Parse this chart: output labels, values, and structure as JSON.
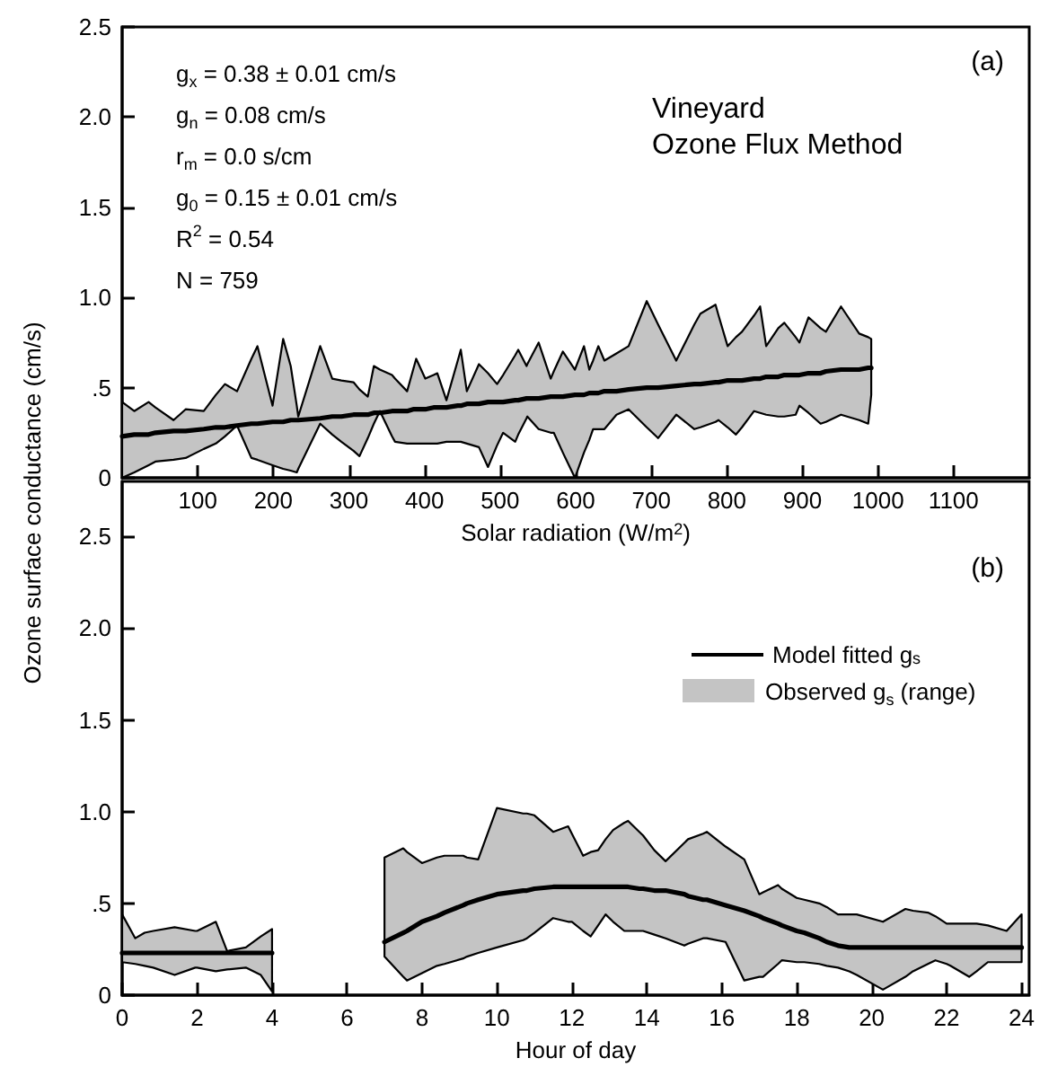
{
  "chart_data": [
    {
      "type": "line",
      "title": "Vineyard",
      "subtitle": "Ozone Flux Method",
      "xlabel": "Solar radiation (W/m$^{2}$)",
      "ylabel": "Ozone surface conductance (cm/s)",
      "annotations": [
        "g$_{x}$ = 0.38 ± 0.01 cm/s",
        "g$_{n}$ = 0.08 cm/s",
        "r$_{m}$ = 0.0 s/cm",
        "g$_{0}$ = 0.15 ± 0.01 cm/s",
        "R$^{2}$ = 0.54",
        "N = 759",
        "(a)"
      ],
      "series": [
        {
          "color": "#000000",
          "x": [
            0,
            16,
            35,
            44,
            68,
            84,
            108,
            124,
            136,
            152,
            171,
            179,
            199,
            213,
            223,
            231,
            233,
            262,
            278,
            290,
            306,
            314,
            325,
            333,
            341,
            357,
            361,
            377,
            385,
            389,
            401,
            412,
            417,
            429,
            444,
            448,
            456,
            472,
            484,
            496,
            504,
            520,
            524,
            535,
            536,
            551,
            567,
            571,
            583,
            599,
            611,
            618,
            623,
            630,
            638,
            654,
            670,
            694,
            709,
            733,
            757,
            765,
            785,
            789,
            801,
            812,
            820,
            836,
            844,
            852,
            868,
            876,
            891,
            896,
            908,
            924,
            931,
            951,
            975,
            987,
            991
          ],
          "values": [
            0.23,
            0.24,
            0.24,
            0.25,
            0.26,
            0.26,
            0.27,
            0.28,
            0.28,
            0.29,
            0.3,
            0.3,
            0.31,
            0.31,
            0.32,
            0.32,
            0.32,
            0.33,
            0.34,
            0.34,
            0.35,
            0.35,
            0.35,
            0.36,
            0.36,
            0.37,
            0.37,
            0.37,
            0.38,
            0.38,
            0.38,
            0.39,
            0.39,
            0.39,
            0.4,
            0.4,
            0.41,
            0.41,
            0.42,
            0.42,
            0.42,
            0.43,
            0.43,
            0.44,
            0.44,
            0.44,
            0.45,
            0.45,
            0.45,
            0.46,
            0.46,
            0.47,
            0.47,
            0.47,
            0.48,
            0.48,
            0.49,
            0.5,
            0.5,
            0.51,
            0.52,
            0.52,
            0.53,
            0.53,
            0.54,
            0.54,
            0.54,
            0.55,
            0.55,
            0.56,
            0.56,
            0.57,
            0.57,
            0.57,
            0.58,
            0.58,
            0.59,
            0.6,
            0.6,
            0.61,
            0.61
          ],
          "upper": [
            0.42,
            0.37,
            0.42,
            0.39,
            0.32,
            0.38,
            0.37,
            0.46,
            0.52,
            0.48,
            0.66,
            0.73,
            0.4,
            0.77,
            0.62,
            0.4,
            0.34,
            0.73,
            0.55,
            0.54,
            0.53,
            0.49,
            0.45,
            0.62,
            0.6,
            0.57,
            0.55,
            0.48,
            0.6,
            0.66,
            0.55,
            0.57,
            0.58,
            0.43,
            0.65,
            0.71,
            0.48,
            0.63,
            0.58,
            0.52,
            0.57,
            0.68,
            0.71,
            0.62,
            0.63,
            0.75,
            0.55,
            0.59,
            0.7,
            0.6,
            0.73,
            0.6,
            0.65,
            0.73,
            0.65,
            0.69,
            0.73,
            0.98,
            0.85,
            0.65,
            0.85,
            0.91,
            0.96,
            0.9,
            0.73,
            0.78,
            0.81,
            0.9,
            0.95,
            0.73,
            0.83,
            0.86,
            0.78,
            0.75,
            0.89,
            0.83,
            0.81,
            0.95,
            0.8,
            0.78,
            0.77
          ],
          "lower": [
            0,
            0.03,
            0.07,
            0.09,
            0.1,
            0.11,
            0.16,
            0.19,
            0.23,
            0.29,
            0.11,
            0.1,
            0.07,
            0.05,
            0.04,
            0.03,
            0.05,
            0.3,
            0.24,
            0.2,
            0.15,
            0.12,
            0.22,
            0.3,
            0.37,
            0.23,
            0.2,
            0.19,
            0.19,
            0.19,
            0.19,
            0.19,
            0.19,
            0.2,
            0.2,
            0.2,
            0.19,
            0.17,
            0.06,
            0.18,
            0.25,
            0.2,
            0.24,
            0.33,
            0.34,
            0.27,
            0.25,
            0.25,
            0.14,
            0,
            0.14,
            0.21,
            0.27,
            0.27,
            0.27,
            0.35,
            0.38,
            0.28,
            0.22,
            0.35,
            0.27,
            0.28,
            0.31,
            0.32,
            0.28,
            0.24,
            0.28,
            0.37,
            0.36,
            0.35,
            0.34,
            0.34,
            0.35,
            0.4,
            0.36,
            0.3,
            0.31,
            0.35,
            0.32,
            0.3,
            0.46
          ]
        }
      ],
      "xlim": [
        0,
        1200
      ],
      "xticks": [
        100,
        200,
        300,
        400,
        500,
        600,
        700,
        800,
        900,
        1000,
        1100
      ],
      "ylim": [
        0,
        2.5
      ],
      "yticks": [
        0,
        {
          "value": 0.5,
          "label": ".5"
        },
        {
          "value": 1,
          "label": "1.0"
        },
        1.5,
        {
          "value": 2,
          "label": "2.0"
        },
        2.5
      ]
    },
    {
      "type": "line",
      "xlabel": "Hour of day",
      "annotations": [
        "(b)",
        "Observed g$_{s}$ (range)"
      ],
      "legend": "top right",
      "series": [
        {
          "name": "Model fitted g$_{s}$",
          "color": "#000000",
          "x": [
            0,
            0.35,
            0.6,
            0.83,
            1.4,
            1.95,
            2,
            2.5,
            2.8,
            3.3,
            3.7,
            4,
            5.5,
            7,
            7.5,
            7.6,
            8,
            8.4,
            8.6,
            9.1,
            9.2,
            9.5,
            10,
            10.7,
            10.8,
            11,
            11.5,
            11.9,
            12,
            12.3,
            12.5,
            12.7,
            12.9,
            13.1,
            13.4,
            13.5,
            13.8,
            13.9,
            14.2,
            14.5,
            15,
            15.1,
            15.5,
            15.6,
            16.1,
            16.6,
            17,
            17.1,
            17.5,
            17.6,
            18,
            18.2,
            18.6,
            18.8,
            19.1,
            19.4,
            19.6,
            20.3,
            20.9,
            21.1,
            21.5,
            21.7,
            22,
            22.1,
            22.6,
            22.8,
            23.1,
            23.6,
            24
          ],
          "values": [
            0.23,
            0.23,
            0.23,
            0.23,
            0.23,
            0.23,
            0.23,
            0.23,
            0.23,
            0.23,
            0.23,
            0.23,
            null,
            0.29,
            0.34,
            0.35,
            0.4,
            0.43,
            0.45,
            0.49,
            0.5,
            0.52,
            0.55,
            0.57,
            0.57,
            0.58,
            0.59,
            0.59,
            0.59,
            0.59,
            0.59,
            0.59,
            0.59,
            0.59,
            0.59,
            0.59,
            0.58,
            0.58,
            0.57,
            0.57,
            0.55,
            0.54,
            0.52,
            0.52,
            0.49,
            0.46,
            0.43,
            0.42,
            0.39,
            0.38,
            0.35,
            0.34,
            0.31,
            0.29,
            0.27,
            0.26,
            0.26,
            0.26,
            0.26,
            0.26,
            0.26,
            0.26,
            0.26,
            0.26,
            0.26,
            0.26,
            0.26,
            0.26,
            0.26
          ],
          "upper": [
            0.44,
            0.31,
            0.34,
            0.35,
            0.37,
            0.35,
            0.35,
            0.4,
            0.24,
            0.26,
            0.32,
            0.36,
            null,
            0.75,
            0.8,
            0.78,
            0.72,
            0.75,
            0.76,
            0.76,
            0.75,
            0.74,
            1.02,
            0.99,
            0.99,
            0.98,
            0.89,
            0.92,
            0.88,
            0.76,
            0.78,
            0.79,
            0.85,
            0.9,
            0.94,
            0.95,
            0.89,
            0.87,
            0.79,
            0.73,
            0.83,
            0.85,
            0.88,
            0.89,
            0.81,
            0.74,
            0.55,
            0.56,
            0.6,
            0.58,
            0.53,
            0.52,
            0.5,
            0.48,
            0.44,
            0.44,
            0.44,
            0.4,
            0.47,
            0.46,
            0.45,
            0.43,
            0.39,
            0.39,
            0.39,
            0.39,
            0.38,
            0.35,
            0.44
          ],
          "lower": [
            0.18,
            0.17,
            0.16,
            0.15,
            0.11,
            0.15,
            0.15,
            0.13,
            0.14,
            0.15,
            0.11,
            0.02,
            null,
            0.21,
            0.1,
            0.08,
            0.12,
            0.16,
            0.17,
            0.2,
            0.21,
            0.23,
            0.26,
            0.3,
            0.31,
            0.34,
            0.42,
            0.4,
            0.4,
            0.35,
            0.32,
            0.38,
            0.44,
            0.4,
            0.35,
            0.35,
            0.35,
            0.35,
            0.33,
            0.31,
            0.27,
            0.28,
            0.31,
            0.31,
            0.29,
            0.08,
            0.1,
            0.1,
            0.17,
            0.19,
            0.18,
            0.18,
            0.17,
            0.16,
            0.15,
            0.13,
            0.11,
            0.03,
            0.1,
            0.13,
            0.17,
            0.19,
            0.17,
            0.16,
            0.1,
            0.13,
            0.18,
            0.18,
            0.18
          ]
        }
      ],
      "xlim": [
        0,
        24.2
      ],
      "xticks": [
        0,
        2,
        4,
        6,
        8,
        10,
        12,
        14,
        16,
        18,
        20,
        22,
        24
      ],
      "ylim": [
        0,
        2.8
      ],
      "yticks": [
        0,
        {
          "value": 0.5,
          "label": ".5"
        },
        {
          "value": 1,
          "label": "1.0"
        },
        1.5,
        {
          "value": 2,
          "label": "2.0"
        },
        2.5
      ]
    }
  ]
}
